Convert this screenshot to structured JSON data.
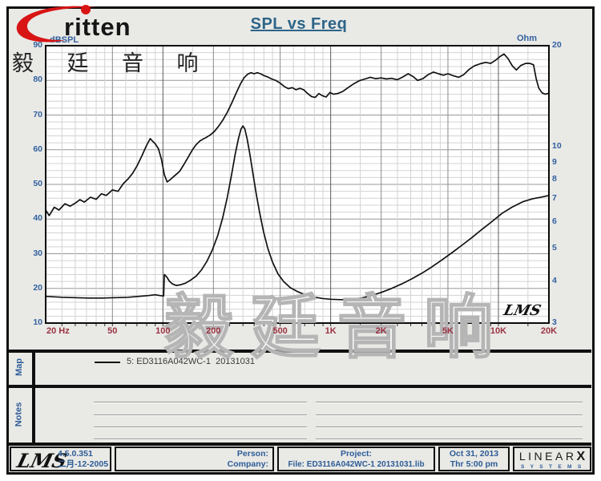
{
  "logo": {
    "brand": "ritten",
    "chinese_header": "毅 廷 音 响"
  },
  "chart": {
    "title": "SPL vs Freq",
    "left_axis": {
      "label": "dBSPL",
      "ticks": [
        90,
        80,
        70,
        60,
        50,
        40,
        30,
        20,
        10
      ],
      "min": 10,
      "max": 90
    },
    "right_axis": {
      "label": "Ohm",
      "ticks": [
        20,
        10,
        9,
        8,
        7,
        6,
        5,
        4,
        3
      ],
      "min": 3,
      "max": 20
    },
    "x_axis": {
      "min": 20,
      "max": 20000,
      "ticks": [
        {
          "f": 20,
          "label": "20  Hz"
        },
        {
          "f": 50,
          "label": "50"
        },
        {
          "f": 100,
          "label": "100"
        },
        {
          "f": 200,
          "label": "200"
        },
        {
          "f": 500,
          "label": "500"
        },
        {
          "f": 1000,
          "label": "1K"
        },
        {
          "f": 2000,
          "label": "2K"
        },
        {
          "f": 5000,
          "label": "5K"
        },
        {
          "f": 10000,
          "label": "10K"
        },
        {
          "f": 20000,
          "label": "20K"
        }
      ]
    },
    "watermark": "毅廷音响",
    "corner_logo": "LMS",
    "colors": {
      "title": "#2d6488",
      "axis_blue": "#33619e",
      "freq_red": "#9a3240",
      "curve": "#111111"
    }
  },
  "chart_data": {
    "type": "line",
    "title": "SPL vs Freq",
    "x_scale": "log",
    "xlim": [
      20,
      20000
    ],
    "left_ylabel": "dBSPL",
    "left_ylim": [
      10,
      90
    ],
    "right_ylabel": "Ohm",
    "right_ylim": [
      3,
      20
    ],
    "right_scale": "log",
    "legend": [
      "5: ED3116A042WC-1  20131031"
    ],
    "series": [
      {
        "name": "SPL",
        "axis": "left",
        "points": [
          [
            20,
            42.6
          ],
          [
            21,
            41
          ],
          [
            22.5,
            43.4
          ],
          [
            24,
            42.6
          ],
          [
            26,
            44.4
          ],
          [
            28,
            43.7
          ],
          [
            30,
            44.6
          ],
          [
            32,
            45.6
          ],
          [
            34,
            44.9
          ],
          [
            37,
            46.3
          ],
          [
            40,
            45.7
          ],
          [
            43,
            47.3
          ],
          [
            46,
            46.8
          ],
          [
            50,
            48.4
          ],
          [
            54,
            48
          ],
          [
            58,
            50.2
          ],
          [
            62,
            51.6
          ],
          [
            66,
            53.2
          ],
          [
            70,
            55.3
          ],
          [
            75,
            58.3
          ],
          [
            80,
            61.3
          ],
          [
            84,
            63.2
          ],
          [
            87,
            62.4
          ],
          [
            90,
            61.7
          ],
          [
            94,
            60.3
          ],
          [
            98,
            57.2
          ],
          [
            102,
            52.8
          ],
          [
            106,
            50.7
          ],
          [
            110,
            51.3
          ],
          [
            118,
            52.6
          ],
          [
            126,
            53.8
          ],
          [
            134,
            55.9
          ],
          [
            142,
            58
          ],
          [
            150,
            60
          ],
          [
            158,
            61.5
          ],
          [
            166,
            62.5
          ],
          [
            174,
            63.1
          ],
          [
            182,
            63.6
          ],
          [
            192,
            64.3
          ],
          [
            203,
            65.3
          ],
          [
            215,
            66.8
          ],
          [
            228,
            68.6
          ],
          [
            242,
            70.8
          ],
          [
            257,
            73.4
          ],
          [
            273,
            76.3
          ],
          [
            290,
            79
          ],
          [
            305,
            80.8
          ],
          [
            320,
            81.8
          ],
          [
            335,
            82.2
          ],
          [
            350,
            81.9
          ],
          [
            365,
            82.2
          ],
          [
            382,
            81.9
          ],
          [
            400,
            81.4
          ],
          [
            420,
            81
          ],
          [
            445,
            80.4
          ],
          [
            470,
            80
          ],
          [
            500,
            79.2
          ],
          [
            530,
            78.2
          ],
          [
            560,
            77.6
          ],
          [
            590,
            77.9
          ],
          [
            620,
            77.3
          ],
          [
            655,
            77.7
          ],
          [
            690,
            77.3
          ],
          [
            730,
            76.2
          ],
          [
            770,
            75.3
          ],
          [
            810,
            75.1
          ],
          [
            850,
            76.2
          ],
          [
            890,
            75.6
          ],
          [
            940,
            75.2
          ],
          [
            990,
            76.5
          ],
          [
            1040,
            76
          ],
          [
            1100,
            76.2
          ],
          [
            1180,
            76.8
          ],
          [
            1270,
            77.9
          ],
          [
            1370,
            79
          ],
          [
            1480,
            79.9
          ],
          [
            1600,
            80.4
          ],
          [
            1720,
            80.9
          ],
          [
            1850,
            80.5
          ],
          [
            2000,
            80.7
          ],
          [
            2150,
            80.4
          ],
          [
            2300,
            80.6
          ],
          [
            2500,
            80.2
          ],
          [
            2700,
            81
          ],
          [
            2900,
            81.9
          ],
          [
            3100,
            81.1
          ],
          [
            3300,
            80
          ],
          [
            3550,
            80.5
          ],
          [
            3800,
            81.6
          ],
          [
            4100,
            82.4
          ],
          [
            4400,
            81.9
          ],
          [
            4700,
            81.5
          ],
          [
            5000,
            81.9
          ],
          [
            5400,
            81.3
          ],
          [
            5800,
            80.9
          ],
          [
            6200,
            81.6
          ],
          [
            6700,
            83.2
          ],
          [
            7200,
            84.2
          ],
          [
            7800,
            84.8
          ],
          [
            8400,
            85.2
          ],
          [
            9000,
            84.9
          ],
          [
            9600,
            85.8
          ],
          [
            10300,
            87
          ],
          [
            10800,
            87.6
          ],
          [
            11400,
            86.3
          ],
          [
            12100,
            84.2
          ],
          [
            12800,
            83
          ],
          [
            13600,
            84.3
          ],
          [
            14500,
            84.9
          ],
          [
            15400,
            84.9
          ],
          [
            16200,
            84.5
          ],
          [
            16800,
            80.5
          ],
          [
            17400,
            77.8
          ],
          [
            18200,
            76.4
          ],
          [
            19000,
            76
          ],
          [
            20000,
            76.3
          ]
        ]
      },
      {
        "name": "Impedance",
        "axis": "right",
        "points": [
          [
            20,
            3.6
          ],
          [
            25,
            3.58
          ],
          [
            30,
            3.57
          ],
          [
            36,
            3.56
          ],
          [
            43,
            3.56
          ],
          [
            52,
            3.57
          ],
          [
            62,
            3.58
          ],
          [
            72,
            3.6
          ],
          [
            82,
            3.62
          ],
          [
            90,
            3.64
          ],
          [
            96,
            3.62
          ],
          [
            101,
            3.61
          ],
          [
            102,
            4.18
          ],
          [
            105,
            4.12
          ],
          [
            109,
            4
          ],
          [
            114,
            3.92
          ],
          [
            120,
            3.88
          ],
          [
            128,
            3.9
          ],
          [
            136,
            3.94
          ],
          [
            146,
            4.02
          ],
          [
            158,
            4.14
          ],
          [
            170,
            4.32
          ],
          [
            183,
            4.58
          ],
          [
            197,
            4.95
          ],
          [
            212,
            5.45
          ],
          [
            227,
            6.15
          ],
          [
            242,
            7.1
          ],
          [
            257,
            8.3
          ],
          [
            270,
            9.55
          ],
          [
            282,
            10.6
          ],
          [
            292,
            11.3
          ],
          [
            300,
            11.55
          ],
          [
            308,
            11.3
          ],
          [
            318,
            10.55
          ],
          [
            330,
            9.5
          ],
          [
            344,
            8.35
          ],
          [
            360,
            7.25
          ],
          [
            378,
            6.35
          ],
          [
            398,
            5.6
          ],
          [
            422,
            5
          ],
          [
            450,
            4.55
          ],
          [
            485,
            4.2
          ],
          [
            525,
            3.98
          ],
          [
            575,
            3.82
          ],
          [
            635,
            3.72
          ],
          [
            705,
            3.64
          ],
          [
            790,
            3.59
          ],
          [
            890,
            3.55
          ],
          [
            1000,
            3.53
          ],
          [
            1150,
            3.52
          ],
          [
            1320,
            3.53
          ],
          [
            1520,
            3.56
          ],
          [
            1750,
            3.62
          ],
          [
            2000,
            3.7
          ],
          [
            2300,
            3.8
          ],
          [
            2650,
            3.92
          ],
          [
            3050,
            4.06
          ],
          [
            3500,
            4.22
          ],
          [
            4000,
            4.4
          ],
          [
            4600,
            4.62
          ],
          [
            5300,
            4.86
          ],
          [
            6100,
            5.12
          ],
          [
            7000,
            5.4
          ],
          [
            8000,
            5.7
          ],
          [
            9200,
            6.02
          ],
          [
            10500,
            6.35
          ],
          [
            12000,
            6.62
          ],
          [
            14000,
            6.88
          ],
          [
            16000,
            7.02
          ],
          [
            18000,
            7.1
          ],
          [
            20000,
            7.18
          ]
        ]
      }
    ]
  },
  "map": {
    "label": "Map",
    "legend_text": "5: ED3116A042WC-1  20131031"
  },
  "notes": {
    "label": "Notes"
  },
  "footer": {
    "lms_logo": "LMS",
    "version": "4.5.0.351",
    "version_date": "二月-12-2005",
    "person_label": "Person:",
    "company_label": "Company:",
    "project_label": "Project:",
    "file_line": "File: ED3116A042WC-1  20131031.lib",
    "date_line1": "Oct 31, 2013",
    "date_line2": "Thr  5:00 pm",
    "linearx_main": "LINEAR",
    "linearx_x": "X",
    "linearx_sub": "S Y S T E M S"
  }
}
